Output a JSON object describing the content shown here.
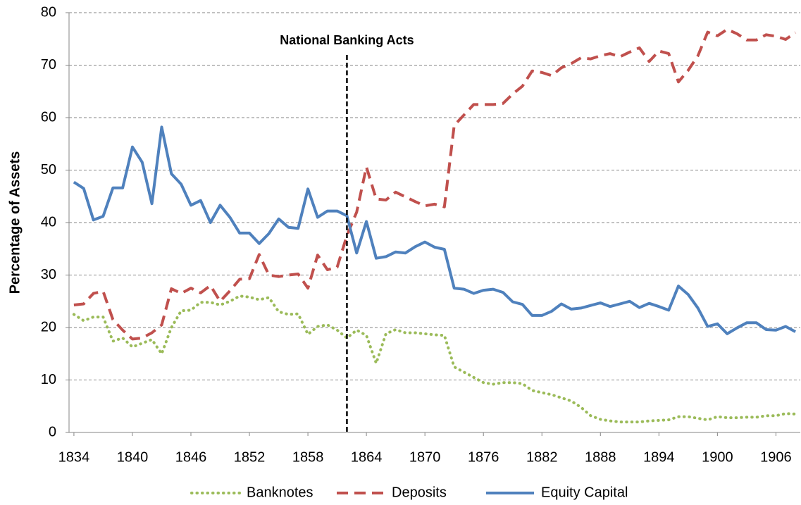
{
  "chart_data": {
    "type": "line",
    "y_label": "Percentage of Assets",
    "annotation": {
      "text": "National Banking Acts",
      "x": 1862
    },
    "x": [
      1834,
      1835,
      1836,
      1837,
      1838,
      1839,
      1840,
      1841,
      1842,
      1843,
      1844,
      1845,
      1846,
      1847,
      1848,
      1849,
      1850,
      1851,
      1852,
      1853,
      1854,
      1855,
      1856,
      1857,
      1858,
      1859,
      1860,
      1861,
      1862,
      1863,
      1864,
      1865,
      1866,
      1867,
      1868,
      1869,
      1870,
      1871,
      1872,
      1873,
      1874,
      1875,
      1876,
      1877,
      1878,
      1879,
      1880,
      1881,
      1882,
      1883,
      1884,
      1885,
      1886,
      1887,
      1888,
      1889,
      1890,
      1891,
      1892,
      1893,
      1894,
      1895,
      1896,
      1897,
      1898,
      1899,
      1900,
      1901,
      1902,
      1903,
      1904,
      1905,
      1906,
      1907,
      1908
    ],
    "series": [
      {
        "name": "Banknotes",
        "color": "#9bbb59",
        "style": "dotted",
        "values": [
          22.5,
          21.3,
          22.0,
          22.0,
          17.4,
          18.0,
          16.3,
          17.0,
          17.7,
          15.0,
          20.0,
          23.2,
          23.3,
          24.8,
          24.8,
          24.3,
          25.0,
          26.0,
          25.8,
          25.3,
          25.7,
          23.0,
          22.5,
          22.6,
          18.7,
          20.2,
          20.5,
          19.5,
          18.0,
          19.5,
          18.5,
          13.2,
          18.8,
          19.6,
          19.0,
          19.0,
          18.8,
          18.6,
          18.5,
          12.5,
          11.5,
          10.5,
          9.5,
          9.2,
          9.5,
          9.5,
          9.3,
          8.0,
          7.6,
          7.2,
          6.6,
          6.0,
          4.8,
          3.2,
          2.5,
          2.2,
          2.0,
          2.0,
          2.0,
          2.2,
          2.3,
          2.4,
          3.0,
          3.0,
          2.7,
          2.4,
          3.0,
          2.8,
          2.8,
          2.9,
          2.9,
          3.2,
          3.2,
          3.6,
          3.5
        ]
      },
      {
        "name": "Deposits",
        "color": "#c0504d",
        "style": "dashed",
        "values": [
          24.3,
          24.5,
          26.5,
          26.9,
          21.5,
          19.5,
          17.8,
          18.0,
          19.0,
          20.5,
          27.4,
          26.5,
          27.5,
          26.6,
          28.0,
          25.0,
          27.0,
          29.2,
          29.3,
          33.9,
          30.0,
          29.7,
          30.0,
          30.2,
          27.5,
          33.8,
          31.0,
          31.5,
          37.5,
          42.0,
          50.6,
          44.5,
          44.3,
          45.8,
          44.9,
          44.0,
          43.2,
          43.5,
          43.0,
          58.5,
          60.5,
          62.5,
          62.5,
          62.5,
          62.7,
          64.5,
          66.0,
          68.9,
          68.6,
          68.0,
          69.5,
          70.3,
          71.4,
          71.2,
          71.8,
          72.2,
          71.6,
          72.5,
          73.3,
          70.7,
          72.7,
          72.2,
          66.8,
          69.0,
          71.8,
          76.3,
          75.6,
          76.8,
          76.0,
          74.8,
          74.8,
          75.8,
          75.5,
          74.9,
          76.2
        ]
      },
      {
        "name": "Equity Capital",
        "color": "#4f81bd",
        "style": "solid",
        "values": [
          47.7,
          46.5,
          40.5,
          41.2,
          46.6,
          46.6,
          54.4,
          51.5,
          43.6,
          58.2,
          49.3,
          47.3,
          43.3,
          44.2,
          40.0,
          43.3,
          41.0,
          38.0,
          38.0,
          36.0,
          37.9,
          40.7,
          39.1,
          38.9,
          46.4,
          41.0,
          42.2,
          42.2,
          41.3,
          34.2,
          40.2,
          33.2,
          33.5,
          34.4,
          34.2,
          35.4,
          36.3,
          35.3,
          34.9,
          27.5,
          27.3,
          26.5,
          27.1,
          27.3,
          26.7,
          24.9,
          24.4,
          22.3,
          22.3,
          23.1,
          24.5,
          23.5,
          23.7,
          24.2,
          24.7,
          24.0,
          24.5,
          25.0,
          23.8,
          24.6,
          24.0,
          23.3,
          27.9,
          26.3,
          23.7,
          20.2,
          20.7,
          18.8,
          19.9,
          20.9,
          20.9,
          19.6,
          19.5,
          20.2,
          19.2
        ]
      }
    ],
    "xlim": [
      1833.5,
      1908.5
    ],
    "xticks": [
      1834,
      1840,
      1846,
      1852,
      1858,
      1864,
      1870,
      1876,
      1882,
      1888,
      1894,
      1900,
      1906
    ],
    "ylim": [
      0,
      80
    ],
    "yticks": [
      0,
      10,
      20,
      30,
      40,
      50,
      60,
      70,
      80
    ],
    "grid": true,
    "legend": "bottom"
  }
}
